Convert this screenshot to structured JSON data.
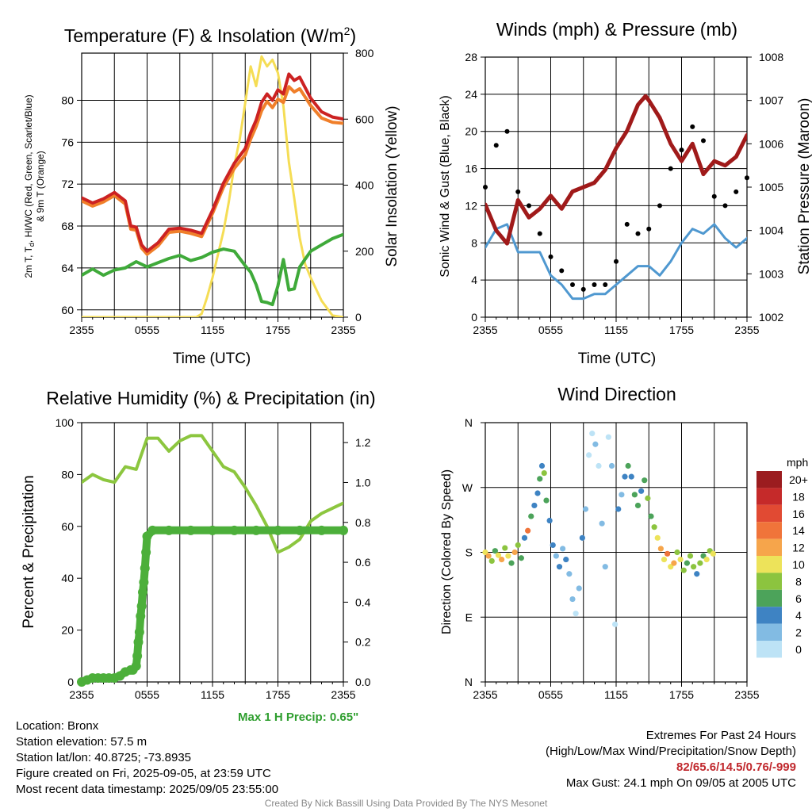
{
  "chart_data": [
    {
      "type": "line",
      "title": "Temperature (F) & Insolation (W/m2)",
      "title_main": "Temperature (F) & Insolation (W/m",
      "title_sup": "2",
      "title_end": ")",
      "xlabel": "Time (UTC)",
      "ylabel": "2m T, Td, HI/WC (Red, Green, Scarlet/Blue) & 9m T (Orange)",
      "ylabel_line1": "2m T, T",
      "ylabel_sub": "d",
      "ylabel_line1_end": ", HI/WC (Red, Green, Scarlet/Blue)",
      "ylabel_line2": "& 9m T (Orange)",
      "y2label": "Solar Insolation (Yellow)",
      "xticks": [
        "2355",
        "0555",
        "1155",
        "1755",
        "2355"
      ],
      "yticks": [
        60,
        64,
        68,
        72,
        76,
        80
      ],
      "y2ticks": [
        0,
        200,
        400,
        600,
        800
      ],
      "ylim": [
        59.3,
        84.5
      ],
      "y2lim": [
        0,
        800
      ],
      "series": [
        {
          "name": "2m T",
          "color": "#cc2222",
          "x": [
            0,
            1,
            2,
            3,
            4,
            4.5,
            5,
            5.5,
            6,
            7,
            8,
            9,
            10,
            11,
            12,
            13,
            14,
            15,
            15.5,
            16,
            16.5,
            17,
            17.5,
            18,
            18.5,
            19,
            19.5,
            20,
            21,
            22,
            23,
            24
          ],
          "y": [
            70.7,
            70.2,
            70.6,
            71.2,
            70.4,
            68.0,
            67.9,
            66.2,
            65.6,
            66.4,
            67.7,
            67.8,
            67.6,
            67.3,
            69.5,
            72.1,
            74.0,
            75.4,
            76.9,
            78.1,
            79.8,
            80.6,
            80.0,
            81.0,
            80.6,
            82.5,
            81.9,
            82.2,
            80.2,
            78.9,
            78.4,
            78.2
          ]
        },
        {
          "name": "9m T",
          "color": "#f07f2a",
          "x": [
            0,
            1,
            2,
            3,
            4,
            4.5,
            5,
            5.5,
            6,
            7,
            8,
            9,
            10,
            11,
            12,
            13,
            14,
            15,
            15.5,
            16,
            16.5,
            17,
            17.5,
            18,
            18.5,
            19,
            19.5,
            20,
            21,
            22,
            23,
            24
          ],
          "y": [
            70.4,
            69.9,
            70.3,
            70.9,
            70.1,
            67.7,
            67.6,
            65.9,
            65.3,
            66.1,
            67.4,
            67.5,
            67.3,
            67.0,
            69.2,
            71.7,
            73.5,
            74.8,
            76.3,
            77.5,
            79.0,
            79.9,
            79.3,
            80.1,
            79.8,
            81.3,
            80.8,
            81.1,
            79.5,
            78.3,
            77.9,
            77.8
          ]
        },
        {
          "name": "Td",
          "color": "#3faa3a",
          "x": [
            0,
            1,
            2,
            3,
            4,
            5,
            6,
            7,
            8,
            9,
            10,
            11,
            12,
            13,
            14,
            14.5,
            15,
            15.5,
            16,
            16.5,
            17,
            17.5,
            18,
            18.5,
            19,
            19.5,
            20,
            21,
            22,
            23,
            24
          ],
          "y": [
            63.3,
            63.9,
            63.3,
            63.8,
            64.0,
            64.6,
            64.1,
            64.5,
            64.9,
            65.2,
            64.7,
            65.0,
            65.5,
            65.8,
            65.6,
            64.9,
            64.2,
            63.6,
            62.4,
            60.8,
            60.7,
            60.5,
            62.3,
            64.8,
            61.9,
            62.0,
            64.1,
            65.6,
            66.2,
            66.8,
            67.2
          ]
        },
        {
          "name": "Solar Insolation",
          "color": "#f5dd55",
          "axis": "y2",
          "x": [
            0,
            6,
            10.5,
            11,
            11.5,
            12,
            12.5,
            13,
            13.5,
            14,
            14.5,
            15,
            15.5,
            16,
            16.5,
            17,
            17.5,
            18,
            18.5,
            19,
            19.5,
            20,
            20.5,
            21,
            22,
            23,
            24
          ],
          "y": [
            0,
            0,
            0,
            10,
            60,
            120,
            190,
            260,
            350,
            460,
            540,
            650,
            760,
            700,
            790,
            760,
            780,
            740,
            640,
            470,
            360,
            240,
            160,
            120,
            50,
            5,
            0
          ]
        }
      ]
    },
    {
      "type": "line",
      "title": "Winds (mph) & Pressure (mb)",
      "xlabel": "Time (UTC)",
      "ylabel": "Sonic Wind & Gust (Blue, Black)",
      "y2label": "Station Pressure (Maroon)",
      "xticks": [
        "2355",
        "0555",
        "1155",
        "1755",
        "2355"
      ],
      "yticks": [
        0,
        4,
        8,
        12,
        16,
        20,
        24,
        28
      ],
      "y2ticks": [
        1002,
        1003,
        1004,
        1005,
        1006,
        1007,
        1008
      ],
      "ylim": [
        0,
        28
      ],
      "y2lim": [
        1002,
        1008
      ],
      "series": [
        {
          "name": "Sonic Wind",
          "color": "#4f98d0",
          "x": [
            0,
            1,
            2,
            3,
            4,
            5,
            6,
            7,
            8,
            9,
            10,
            11,
            12,
            13,
            14,
            15,
            16,
            17,
            18,
            19,
            20,
            21,
            22,
            23,
            24
          ],
          "y": [
            7.5,
            9.5,
            10.0,
            7.0,
            7.0,
            7.0,
            4.5,
            3.5,
            2.0,
            2.0,
            2.5,
            2.5,
            3.5,
            4.5,
            5.5,
            5.5,
            4.5,
            6.0,
            8.0,
            9.5,
            9.0,
            10.0,
            8.5,
            7.5,
            8.5
          ]
        },
        {
          "name": "Gust",
          "color": "#000000",
          "x": [
            0,
            1,
            2,
            3,
            4,
            5,
            6,
            7,
            8,
            9,
            10,
            11,
            12,
            13,
            14,
            15,
            16,
            17,
            18,
            19,
            20,
            21,
            22,
            23,
            24
          ],
          "y": [
            14.0,
            18.5,
            20.0,
            13.5,
            12.0,
            9.0,
            6.5,
            5.0,
            3.5,
            3.0,
            3.5,
            3.5,
            6.0,
            10.0,
            9.0,
            9.5,
            12.0,
            16.0,
            18.0,
            20.5,
            19.0,
            13.0,
            12.0,
            13.5,
            15.0
          ]
        },
        {
          "name": "Station Pressure",
          "color": "#a01a1a",
          "axis": "y2",
          "x": [
            0,
            1,
            2,
            3,
            4,
            5,
            6,
            7,
            8,
            9,
            10,
            11,
            12,
            13,
            14,
            14.7,
            15,
            16,
            17,
            18,
            19,
            20,
            21,
            22,
            23,
            24
          ],
          "y": [
            1004.6,
            1004.0,
            1003.7,
            1004.7,
            1004.3,
            1004.5,
            1004.8,
            1004.5,
            1004.9,
            1005.0,
            1005.1,
            1005.4,
            1005.9,
            1006.3,
            1006.9,
            1007.1,
            1007.0,
            1006.6,
            1006.0,
            1005.6,
            1006.0,
            1005.3,
            1005.6,
            1005.5,
            1005.7,
            1006.2
          ]
        }
      ]
    },
    {
      "type": "line",
      "title": "Relative Humidity (%) & Precipitation (in)",
      "xlabel": "",
      "ylabel": "Percent & Precipitation",
      "xticks": [
        "2355",
        "0555",
        "1155",
        "1755",
        "2355"
      ],
      "yticks": [
        0,
        20,
        40,
        60,
        80,
        100
      ],
      "y2ticks": [
        0.0,
        0.2,
        0.4,
        0.6,
        0.8,
        1.0,
        1.2
      ],
      "ylim": [
        0,
        100
      ],
      "y2lim": [
        0,
        1.3
      ],
      "series": [
        {
          "name": "Relative Humidity",
          "color": "#8cc63f",
          "x": [
            0,
            1,
            2,
            3,
            4,
            5,
            6,
            7,
            8,
            9,
            10,
            11,
            12,
            13,
            14,
            15,
            16,
            17,
            18,
            19,
            20,
            21,
            22,
            23,
            24
          ],
          "y": [
            77,
            80,
            78,
            77,
            83,
            82,
            94,
            94,
            89,
            93,
            95,
            95,
            89,
            83,
            81,
            75,
            68,
            60,
            50,
            52,
            55,
            62,
            65,
            67,
            69
          ]
        },
        {
          "name": "Precipitation",
          "color": "#4caf3a",
          "axis": "y2",
          "x": [
            0,
            0.5,
            1,
            1.5,
            2,
            2.5,
            3,
            3.5,
            4,
            4.5,
            4.7,
            5,
            5.1,
            5.2,
            5.3,
            5.4,
            5.5,
            5.6,
            5.7,
            5.8,
            5.9,
            6.0,
            6.5,
            8,
            10,
            12,
            14,
            16,
            18,
            20,
            22,
            24
          ],
          "y": [
            0,
            0.01,
            0.02,
            0.02,
            0.02,
            0.02,
            0.02,
            0.03,
            0.05,
            0.06,
            0.06,
            0.08,
            0.13,
            0.2,
            0.25,
            0.33,
            0.38,
            0.45,
            0.5,
            0.57,
            0.65,
            0.73,
            0.76,
            0.76,
            0.76,
            0.76,
            0.76,
            0.76,
            0.76,
            0.76,
            0.76,
            0.76
          ]
        }
      ]
    },
    {
      "type": "scatter",
      "title": "Wind Direction",
      "xlabel": "",
      "ylabel": "Direction (Colored By Speed)",
      "xticks": [
        "2355",
        "0555",
        "1155",
        "1755",
        "2355"
      ],
      "yticks": [
        "N",
        "E",
        "S",
        "W",
        "N"
      ],
      "ylim": [
        0,
        360
      ],
      "colorbar": {
        "unit": "mph",
        "labels": [
          "20+",
          "18",
          "16",
          "14",
          "12",
          "10",
          "8",
          "6",
          "4",
          "2",
          "0"
        ],
        "colors": [
          "#9b1c1f",
          "#c52a2a",
          "#e14a33",
          "#f0743a",
          "#f6a54b",
          "#ede35a",
          "#8cc43f",
          "#4ca35a",
          "#3e83c3",
          "#82bbe3",
          "#bde3f6"
        ]
      },
      "points": [
        {
          "x": 0.0,
          "y": 180,
          "speed": 10
        },
        {
          "x": 0.3,
          "y": 175,
          "speed": 12
        },
        {
          "x": 0.6,
          "y": 168,
          "speed": 8
        },
        {
          "x": 0.9,
          "y": 182,
          "speed": 6
        },
        {
          "x": 1.2,
          "y": 176,
          "speed": 10
        },
        {
          "x": 1.5,
          "y": 170,
          "speed": 12
        },
        {
          "x": 1.8,
          "y": 186,
          "speed": 8
        },
        {
          "x": 2.1,
          "y": 175,
          "speed": 10
        },
        {
          "x": 2.4,
          "y": 165,
          "speed": 6
        },
        {
          "x": 2.7,
          "y": 180,
          "speed": 12
        },
        {
          "x": 3.0,
          "y": 190,
          "speed": 8
        },
        {
          "x": 3.3,
          "y": 172,
          "speed": 6
        },
        {
          "x": 3.6,
          "y": 200,
          "speed": 4
        },
        {
          "x": 3.9,
          "y": 210,
          "speed": 14
        },
        {
          "x": 4.2,
          "y": 230,
          "speed": 6
        },
        {
          "x": 4.5,
          "y": 245,
          "speed": 4
        },
        {
          "x": 4.8,
          "y": 262,
          "speed": 4
        },
        {
          "x": 5.0,
          "y": 282,
          "speed": 6
        },
        {
          "x": 5.2,
          "y": 300,
          "speed": 4
        },
        {
          "x": 5.4,
          "y": 290,
          "speed": 8
        },
        {
          "x": 5.6,
          "y": 252,
          "speed": 6
        },
        {
          "x": 5.9,
          "y": 224,
          "speed": 4
        },
        {
          "x": 6.2,
          "y": 190,
          "speed": 4
        },
        {
          "x": 6.5,
          "y": 175,
          "speed": 2
        },
        {
          "x": 6.8,
          "y": 160,
          "speed": 4
        },
        {
          "x": 7.1,
          "y": 185,
          "speed": 2
        },
        {
          "x": 7.4,
          "y": 170,
          "speed": 4
        },
        {
          "x": 7.7,
          "y": 150,
          "speed": 2
        },
        {
          "x": 8.0,
          "y": 115,
          "speed": 2
        },
        {
          "x": 8.3,
          "y": 95,
          "speed": 0
        },
        {
          "x": 8.6,
          "y": 130,
          "speed": 2
        },
        {
          "x": 8.9,
          "y": 200,
          "speed": 4
        },
        {
          "x": 9.2,
          "y": 240,
          "speed": 2
        },
        {
          "x": 9.5,
          "y": 315,
          "speed": 0
        },
        {
          "x": 9.8,
          "y": 345,
          "speed": 0
        },
        {
          "x": 10.1,
          "y": 330,
          "speed": 2
        },
        {
          "x": 10.4,
          "y": 300,
          "speed": 0
        },
        {
          "x": 10.7,
          "y": 220,
          "speed": 2
        },
        {
          "x": 11.0,
          "y": 160,
          "speed": 2
        },
        {
          "x": 11.3,
          "y": 340,
          "speed": 0
        },
        {
          "x": 11.6,
          "y": 300,
          "speed": 2
        },
        {
          "x": 11.9,
          "y": 80,
          "speed": 0
        },
        {
          "x": 12.2,
          "y": 240,
          "speed": 4
        },
        {
          "x": 12.5,
          "y": 260,
          "speed": 2
        },
        {
          "x": 12.8,
          "y": 285,
          "speed": 4
        },
        {
          "x": 13.1,
          "y": 300,
          "speed": 6
        },
        {
          "x": 13.4,
          "y": 285,
          "speed": 4
        },
        {
          "x": 13.7,
          "y": 260,
          "speed": 6
        },
        {
          "x": 14.0,
          "y": 245,
          "speed": 6
        },
        {
          "x": 14.3,
          "y": 265,
          "speed": 4
        },
        {
          "x": 14.6,
          "y": 280,
          "speed": 6
        },
        {
          "x": 14.9,
          "y": 255,
          "speed": 8
        },
        {
          "x": 15.2,
          "y": 230,
          "speed": 6
        },
        {
          "x": 15.5,
          "y": 215,
          "speed": 8
        },
        {
          "x": 15.8,
          "y": 200,
          "speed": 10
        },
        {
          "x": 16.1,
          "y": 185,
          "speed": 12
        },
        {
          "x": 16.4,
          "y": 170,
          "speed": 10
        },
        {
          "x": 16.7,
          "y": 178,
          "speed": 14
        },
        {
          "x": 17.0,
          "y": 160,
          "speed": 10
        },
        {
          "x": 17.3,
          "y": 165,
          "speed": 12
        },
        {
          "x": 17.6,
          "y": 180,
          "speed": 8
        },
        {
          "x": 17.9,
          "y": 170,
          "speed": 10
        },
        {
          "x": 18.2,
          "y": 155,
          "speed": 8
        },
        {
          "x": 18.5,
          "y": 165,
          "speed": 6
        },
        {
          "x": 18.8,
          "y": 175,
          "speed": 8
        },
        {
          "x": 19.1,
          "y": 160,
          "speed": 8
        },
        {
          "x": 19.4,
          "y": 150,
          "speed": 4
        },
        {
          "x": 19.7,
          "y": 165,
          "speed": 8
        },
        {
          "x": 20.0,
          "y": 175,
          "speed": 6
        },
        {
          "x": 20.3,
          "y": 170,
          "speed": 10
        },
        {
          "x": 20.6,
          "y": 182,
          "speed": 8
        },
        {
          "x": 20.9,
          "y": 178,
          "speed": 10
        }
      ]
    }
  ],
  "footer": {
    "location": "Location: Bronx",
    "elevation": "Station elevation: 57.5 m",
    "latlon": "Station lat/lon: 40.8725; -73.8935",
    "created": "Figure created on Fri, 2025-09-05, at 23:59 UTC",
    "recent": "Most recent data timestamp: 2025/09/05 23:55:00",
    "max_precip": "Max 1 H Precip: 0.65\"",
    "extremes_title": "Extremes For Past 24 Hours",
    "extremes_desc": "(High/Low/Max Wind/Precipitation/Snow Depth)",
    "extremes_values": "82/65.6/14.5/0.76/-999",
    "max_gust": "Max Gust: 24.1 mph On 09/05 at 2005 UTC",
    "credit": "Created By Nick Bassill Using Data Provided By The NYS Mesonet"
  }
}
